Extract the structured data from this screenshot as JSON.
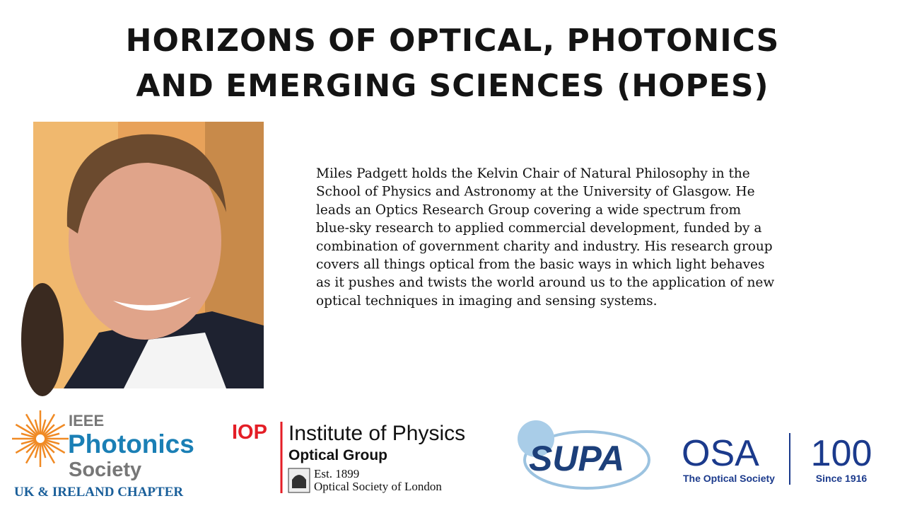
{
  "slide": {
    "title": [
      "HORIZONS OF OPTICAL, PHOTONICS",
      "AND EMERGING SCIENCES (HOPES)"
    ],
    "bio": [
      "Miles Padgett holds the Kelvin Chair of Natural Philosophy in the",
      "School of Physics and Astronomy at the University of Glasgow. He",
      "leads an Optics Research Group covering a wide spectrum from",
      "blue-sky research to applied commercial development, funded by a",
      "combination of government charity and industry. His research group",
      "covers all things optical from the basic ways in which light behaves",
      "as it pushes and twists the world around us to the application of new",
      "optical techniques in imaging and sensing systems."
    ],
    "logos": {
      "ieee": {
        "top": "IEEE",
        "name": "Photonics",
        "sub": "Society",
        "chapter": "UK & IRELAND CHAPTER"
      },
      "iop": {
        "mark": "IOP",
        "name": "Institute of Physics",
        "group": "Optical Group",
        "est": "Est. 1899",
        "society": "Optical Society of London"
      },
      "supa": {
        "name": "SUPA"
      },
      "osa": {
        "name": "OSA",
        "sub": "The Optical Society",
        "centenary": "100",
        "since": "Since 1916"
      }
    }
  }
}
